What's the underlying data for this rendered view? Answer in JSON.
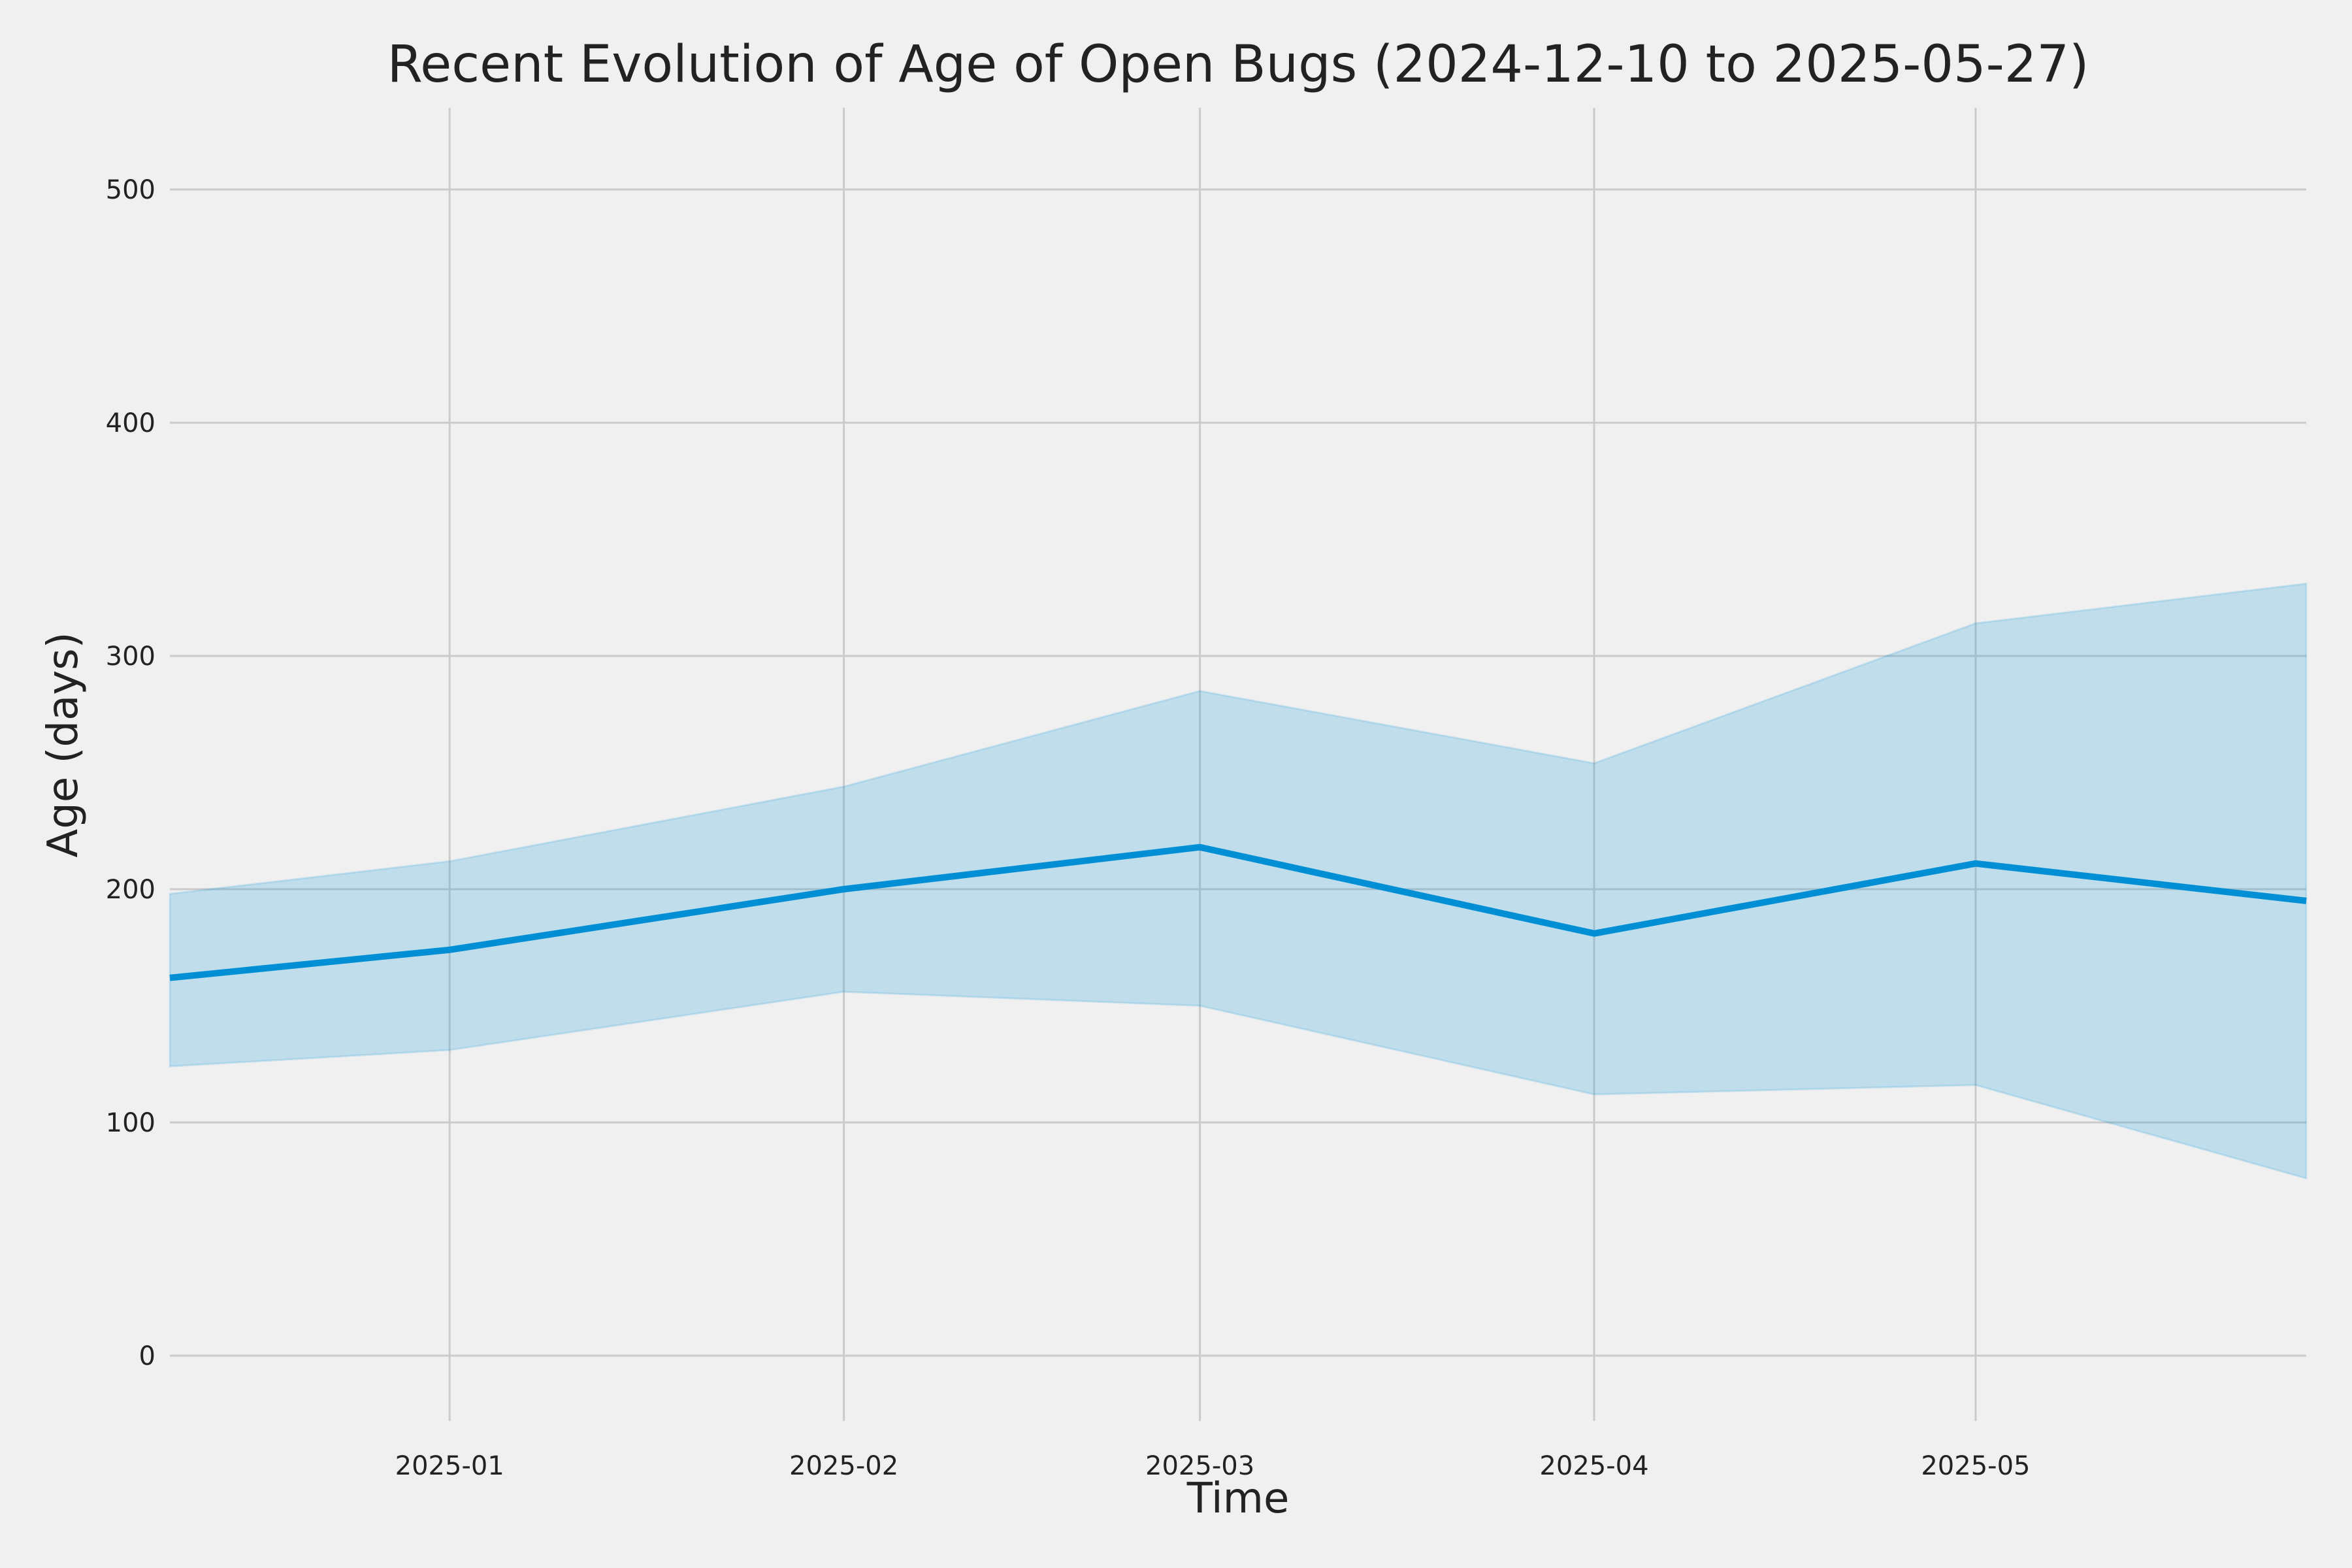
{
  "chart_data": {
    "type": "line",
    "title": "Recent Evolution of Age of Open Bugs (2024-12-10 to 2025-05-27)",
    "xlabel": "Time",
    "ylabel": "Age (days)",
    "xlim": [
      "2024-12-10",
      "2025-05-27"
    ],
    "ylim": [
      -28,
      535
    ],
    "yticks": [
      0,
      100,
      200,
      300,
      400,
      500
    ],
    "xticks": [
      "2025-01-01",
      "2025-02-01",
      "2025-03-01",
      "2025-04-01",
      "2025-05-01"
    ],
    "xtick_labels": [
      "2025-01",
      "2025-02",
      "2025-03",
      "2025-04",
      "2025-05"
    ],
    "grid": true,
    "x": [
      "2024-12-10",
      "2025-01-01",
      "2025-02-01",
      "2025-03-01",
      "2025-04-01",
      "2025-05-01",
      "2025-05-27"
    ],
    "series": [
      {
        "values": [
          162,
          174,
          200,
          218,
          181,
          211,
          195
        ],
        "lower": [
          124,
          131,
          156,
          150,
          112,
          116,
          76
        ],
        "upper": [
          198,
          212,
          244,
          285,
          254,
          314,
          331
        ]
      }
    ],
    "colors": {
      "line": "#008fd5",
      "band": "#008fd5",
      "background": "#f0f0f0",
      "grid": "#cbcbcb"
    }
  }
}
